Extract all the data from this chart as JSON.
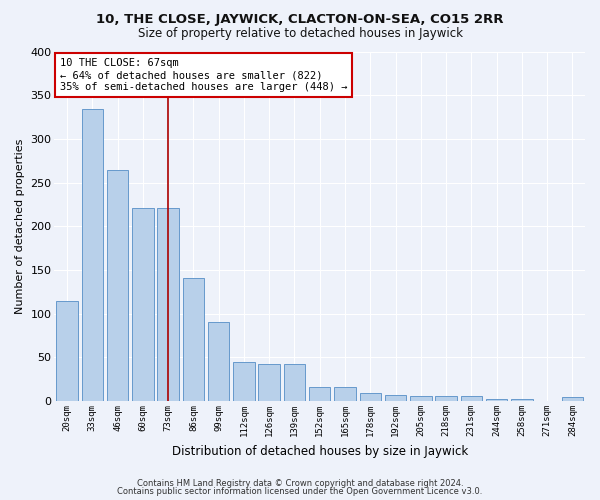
{
  "title1": "10, THE CLOSE, JAYWICK, CLACTON-ON-SEA, CO15 2RR",
  "title2": "Size of property relative to detached houses in Jaywick",
  "xlabel": "Distribution of detached houses by size in Jaywick",
  "ylabel": "Number of detached properties",
  "footer1": "Contains HM Land Registry data © Crown copyright and database right 2024.",
  "footer2": "Contains public sector information licensed under the Open Government Licence v3.0.",
  "categories": [
    "20sqm",
    "33sqm",
    "46sqm",
    "60sqm",
    "73sqm",
    "86sqm",
    "99sqm",
    "112sqm",
    "126sqm",
    "139sqm",
    "152sqm",
    "165sqm",
    "178sqm",
    "192sqm",
    "205sqm",
    "218sqm",
    "231sqm",
    "244sqm",
    "258sqm",
    "271sqm",
    "284sqm"
  ],
  "values": [
    114,
    334,
    265,
    221,
    221,
    141,
    91,
    45,
    43,
    43,
    16,
    16,
    9,
    7,
    6,
    6,
    6,
    3,
    3,
    0,
    5
  ],
  "bar_color": "#b8d0ea",
  "bar_edge_color": "#6699cc",
  "vline_x": 4,
  "vline_color": "#aa0000",
  "annotation_title": "10 THE CLOSE: 67sqm",
  "annotation_line1": "← 64% of detached houses are smaller (822)",
  "annotation_line2": "35% of semi-detached houses are larger (448) →",
  "background_color": "#eef2fa",
  "grid_color": "#d8e0f0",
  "ylim": [
    0,
    400
  ],
  "yticks": [
    0,
    50,
    100,
    150,
    200,
    250,
    300,
    350,
    400
  ]
}
